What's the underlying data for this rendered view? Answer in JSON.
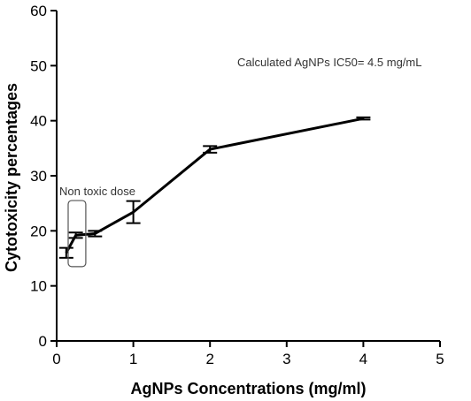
{
  "chart_data": {
    "type": "line",
    "xlabel": "AgNPs Concentrations (mg/ml)",
    "ylabel": "Cytotoxicity percentages",
    "xlim": [
      0,
      5
    ],
    "ylim": [
      0,
      60
    ],
    "xticks": [
      0,
      1,
      2,
      3,
      4,
      5
    ],
    "yticks": [
      0,
      10,
      20,
      30,
      40,
      50,
      60
    ],
    "grid": false,
    "series": [
      {
        "x": [
          0.125,
          0.25,
          0.5,
          1,
          2,
          4
        ],
        "y": [
          16.0,
          19.2,
          19.5,
          23.4,
          34.8,
          40.4
        ],
        "err": [
          0.9,
          0.5,
          0.5,
          2.0,
          0.6,
          0.2
        ]
      }
    ],
    "annotations": {
      "ic50": "Calculated AgNPs IC50= 4.5 mg/mL",
      "non_toxic": "Non toxic dose"
    },
    "non_toxic_range": {
      "x": [
        0.15,
        0.38
      ],
      "y": [
        13.5,
        25.5
      ]
    }
  }
}
